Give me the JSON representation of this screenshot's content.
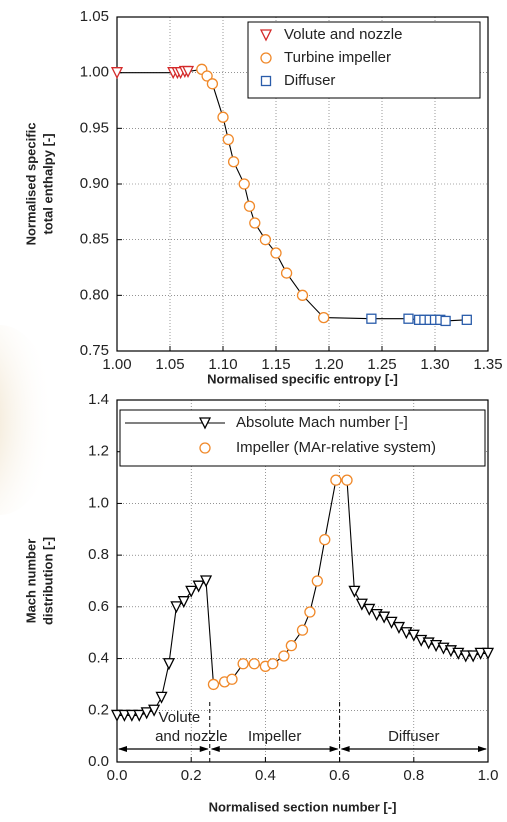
{
  "chart_data": [
    {
      "type": "scatter",
      "xlabel": "Normalised specific entropy [-]",
      "ylabel": [
        "Normalised specific",
        "total enthalpy [-]"
      ],
      "xlim": [
        1.0,
        1.35
      ],
      "ylim": [
        0.75,
        1.05
      ],
      "xticks": [
        {
          "value": 1.0,
          "label": "1.00"
        },
        1.05,
        {
          "value": 1.1,
          "label": "1.10"
        },
        1.15,
        {
          "value": 1.2,
          "label": "1.20"
        },
        1.25,
        {
          "value": 1.3,
          "label": "1.30"
        },
        1.35
      ],
      "yticks": [
        {
          "value": 0.75,
          "label": "0.75"
        },
        {
          "value": 0.8,
          "label": "0.80"
        },
        0.85,
        {
          "value": 0.9,
          "label": "0.90"
        },
        0.95,
        {
          "value": 1.0,
          "label": "1.00"
        },
        1.05
      ],
      "grid": true,
      "series": [
        {
          "name": "Volute and nozzle",
          "color": "#d42a2a",
          "marker": "triangle-down",
          "x": [
            1.0,
            1.053,
            1.057,
            1.06,
            1.064,
            1.067
          ],
          "values": [
            1.0,
            1.0,
            1.0,
            1.0,
            1.001,
            1.001
          ]
        },
        {
          "name": "Turbine impeller",
          "color": "#f0892a",
          "marker": "circle",
          "x": [
            1.08,
            1.085,
            1.09,
            1.1,
            1.105,
            1.11,
            1.12,
            1.125,
            1.13,
            1.14,
            1.15,
            1.16,
            1.175,
            1.195
          ],
          "values": [
            1.003,
            0.997,
            0.99,
            0.96,
            0.94,
            0.92,
            0.9,
            0.88,
            0.865,
            0.85,
            0.838,
            0.82,
            0.8,
            0.78
          ]
        },
        {
          "name": "Diffuser",
          "color": "#2a5caa",
          "marker": "square",
          "x": [
            1.24,
            1.275,
            1.285,
            1.29,
            1.295,
            1.3,
            1.305,
            1.31,
            1.33
          ],
          "values": [
            0.779,
            0.779,
            0.778,
            0.778,
            0.778,
            0.778,
            0.778,
            0.777,
            0.778
          ]
        }
      ]
    },
    {
      "type": "scatter",
      "xlabel": "Normalised section number [-]",
      "ylabel": [
        "Mach number",
        "distribution [-]"
      ],
      "xlim": [
        0,
        1
      ],
      "ylim": [
        0,
        1.4
      ],
      "xticks": [
        {
          "value": 0,
          "label": "0.0"
        },
        0.2,
        0.4,
        0.6,
        0.8,
        {
          "value": 1,
          "label": "1.0"
        }
      ],
      "yticks": [
        {
          "value": 0,
          "label": "0.0"
        },
        0.2,
        0.4,
        0.6,
        0.8,
        {
          "value": 1,
          "label": "1.0"
        },
        1.2,
        1.4
      ],
      "grid": true,
      "series": [
        {
          "name": "Absolute Mach number [-]",
          "color": "#000000",
          "marker": "triangle-down",
          "line": true,
          "x": [
            0.0,
            0.02,
            0.04,
            0.06,
            0.08,
            0.1,
            0.12,
            0.14,
            0.16,
            0.18,
            0.2,
            0.22,
            0.24,
            null,
            0.64,
            0.66,
            0.68,
            0.7,
            0.72,
            0.74,
            0.76,
            0.78,
            0.8,
            0.82,
            0.84,
            0.86,
            0.88,
            0.9,
            0.92,
            0.94,
            0.96,
            0.98,
            1.0
          ],
          "values": [
            0.18,
            0.18,
            0.18,
            0.18,
            0.19,
            0.2,
            0.25,
            0.38,
            0.6,
            0.62,
            0.66,
            0.68,
            0.7,
            null,
            0.66,
            0.61,
            0.59,
            0.57,
            0.56,
            0.54,
            0.52,
            0.5,
            0.49,
            0.47,
            0.46,
            0.45,
            0.44,
            0.43,
            0.42,
            0.41,
            0.41,
            0.42,
            0.42
          ]
        },
        {
          "name": "Impeller (MAr-relative system)",
          "color": "#f0892a",
          "marker": "circle",
          "x": [
            0.26,
            0.29,
            0.31,
            0.34,
            0.37,
            0.4,
            0.42,
            0.45,
            0.47,
            0.5,
            0.52,
            0.54,
            0.56,
            0.59,
            0.62
          ],
          "values": [
            0.3,
            0.31,
            0.32,
            0.38,
            0.38,
            0.37,
            0.38,
            0.41,
            0.45,
            0.51,
            0.58,
            0.7,
            0.86,
            1.09,
            1.09
          ]
        }
      ],
      "regions": [
        {
          "label": [
            "Volute",
            "and nozzle"
          ],
          "from": 0,
          "to": 0.25
        },
        {
          "label": [
            "Impeller"
          ],
          "from": 0.25,
          "to": 0.6
        },
        {
          "label": [
            "Diffuser"
          ],
          "from": 0.6,
          "to": 1
        }
      ]
    }
  ]
}
